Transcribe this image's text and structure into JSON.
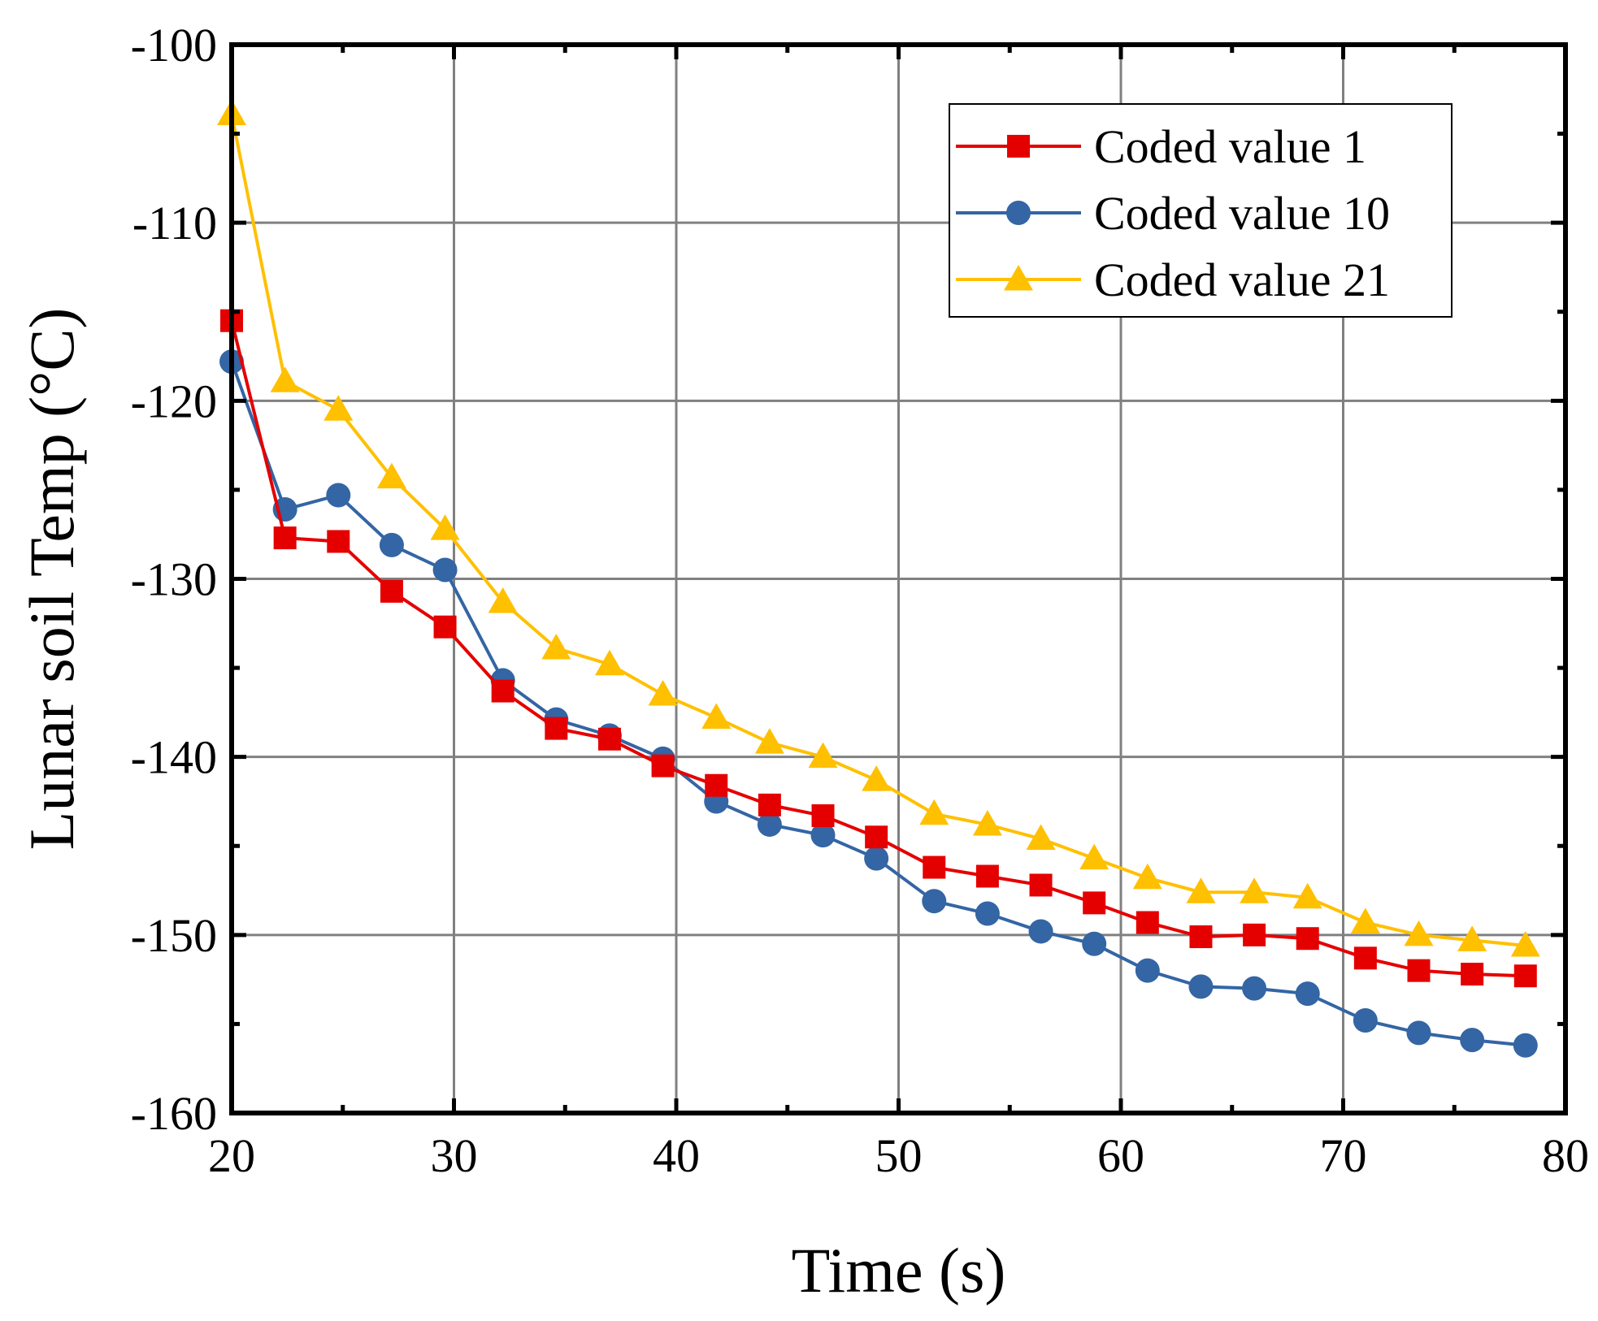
{
  "chart_data": {
    "type": "line",
    "title": "",
    "xlabel": "Time (s)",
    "ylabel": "Lunar soil Temp (°C)",
    "xlim": [
      20,
      80
    ],
    "ylim": [
      -160,
      -100
    ],
    "xticks": [
      20,
      30,
      40,
      50,
      60,
      70,
      80
    ],
    "yticks": [
      -160,
      -150,
      -140,
      -130,
      -120,
      -110,
      -100
    ],
    "grid": true,
    "legend_position": "top-right",
    "x": [
      20.0,
      22.4,
      24.8,
      27.2,
      29.6,
      32.2,
      34.6,
      37.0,
      39.4,
      41.8,
      44.2,
      46.6,
      49.0,
      51.6,
      54.0,
      56.4,
      58.8,
      61.2,
      63.6,
      66.0,
      68.4,
      71.0,
      73.4,
      75.8,
      78.2
    ],
    "series": [
      {
        "name": "Coded value 1",
        "color": "#e50000",
        "marker": "square",
        "values": [
          -115.5,
          -127.7,
          -127.9,
          -130.7,
          -132.7,
          -136.3,
          -138.4,
          -139.0,
          -140.5,
          -141.6,
          -142.7,
          -143.3,
          -144.5,
          -146.2,
          -146.7,
          -147.2,
          -148.2,
          -149.3,
          -150.1,
          -150.0,
          -150.2,
          -151.3,
          -152.0,
          -152.2,
          -152.3
        ]
      },
      {
        "name": "Coded value 10",
        "color": "#3465a4",
        "marker": "circle",
        "values": [
          -117.8,
          -126.1,
          -125.3,
          -128.1,
          -129.5,
          -135.7,
          -137.9,
          -138.8,
          -140.1,
          -142.5,
          -143.8,
          -144.4,
          -145.7,
          -148.1,
          -148.8,
          -149.8,
          -150.5,
          -152.0,
          -152.9,
          -153.0,
          -153.3,
          -154.8,
          -155.5,
          -155.9,
          -156.2
        ]
      },
      {
        "name": "Coded value 21",
        "color": "#ffc000",
        "marker": "triangle",
        "values": [
          -103.9,
          -118.9,
          -120.5,
          -124.3,
          -127.2,
          -131.3,
          -133.9,
          -134.8,
          -136.5,
          -137.8,
          -139.2,
          -140.0,
          -141.3,
          -143.2,
          -143.8,
          -144.6,
          -145.7,
          -146.8,
          -147.6,
          -147.6,
          -147.9,
          -149.3,
          -150.0,
          -150.3,
          -150.6
        ]
      }
    ]
  }
}
